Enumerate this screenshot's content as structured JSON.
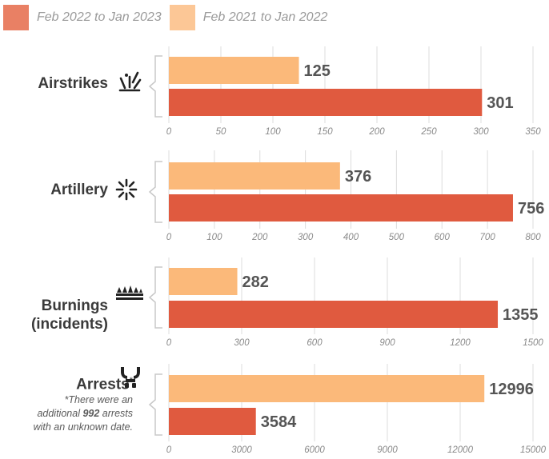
{
  "legend": [
    {
      "label": "Feb 2022 to Jan 2023",
      "color": "#e05a3f"
    },
    {
      "label": "Feb 2021 to Jan 2022",
      "color": "#fbb97a"
    }
  ],
  "colors": {
    "light": "#fbb97a",
    "dark": "#e05a3f",
    "grid": "#dcdcdc",
    "label": "#555555",
    "tick": "#8a8a8a"
  },
  "chart_data": [
    {
      "type": "bar",
      "title": "Airstrikes",
      "icon": "explosion-icon",
      "series": [
        {
          "name": "Feb 2021 to Jan 2022",
          "values": [
            125
          ]
        },
        {
          "name": "Feb 2022 to Jan 2023",
          "values": [
            301
          ]
        }
      ],
      "xlim": [
        0,
        350
      ],
      "ticks": [
        0,
        50,
        100,
        150,
        200,
        250,
        300,
        350
      ]
    },
    {
      "type": "bar",
      "title": "Artillery",
      "icon": "shell-burst-icon",
      "series": [
        {
          "name": "Feb 2021 to Jan 2022",
          "values": [
            376
          ]
        },
        {
          "name": "Feb 2022 to Jan 2023",
          "values": [
            756
          ]
        }
      ],
      "xlim": [
        0,
        800
      ],
      "ticks": [
        0,
        100,
        200,
        300,
        400,
        500,
        600,
        700,
        800
      ]
    },
    {
      "type": "bar",
      "title": "Burnings\n(incidents)",
      "icon": "fire-icon",
      "series": [
        {
          "name": "Feb 2021 to Jan 2022",
          "values": [
            282
          ]
        },
        {
          "name": "Feb 2022 to Jan 2023",
          "values": [
            1355
          ]
        }
      ],
      "xlim": [
        0,
        1500
      ],
      "ticks": [
        0,
        300,
        600,
        900,
        1200,
        1500
      ]
    },
    {
      "type": "bar",
      "title": "Arrests",
      "title_mark": "*",
      "icon": "handcuffs-icon",
      "series": [
        {
          "name": "Feb 2021 to Jan 2022",
          "values": [
            12996
          ]
        },
        {
          "name": "Feb 2022 to Jan 2023",
          "values": [
            3584
          ]
        }
      ],
      "xlim": [
        0,
        15000
      ],
      "ticks": [
        0,
        3000,
        6000,
        9000,
        12000,
        15000
      ]
    }
  ],
  "note": {
    "line1": "*There were an",
    "line2_prefix": "additional ",
    "line2_bold": "992",
    "line2_suffix": " arrests",
    "line3": "with an unknown date."
  }
}
